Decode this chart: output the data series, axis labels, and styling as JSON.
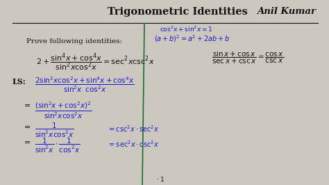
{
  "bg_color": "#ccc8c0",
  "title": "Trigonometric Identities",
  "author": "Anil Kumar",
  "title_color": "#111111",
  "blue_color": "#1a1acc",
  "line_color": "#1a6e2a",
  "figsize": [
    4.74,
    2.66
  ],
  "dpi": 100
}
